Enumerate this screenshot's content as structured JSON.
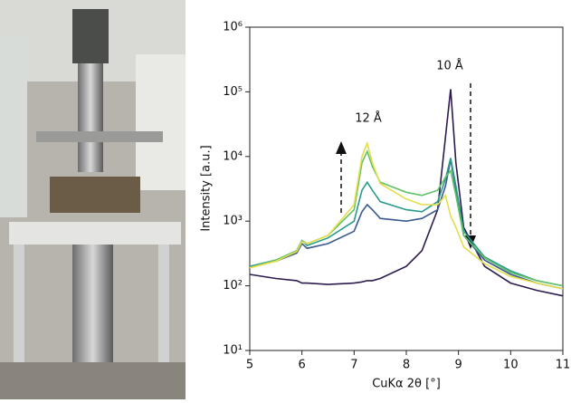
{
  "chart_data": {
    "type": "line",
    "xlabel": "CuKα 2θ [°]",
    "ylabel": "Intensity [a.u.]",
    "annotations": [
      "12 Å",
      "10 Å"
    ],
    "x": [
      5,
      5.5,
      5.9,
      6.0,
      6.1,
      6.5,
      7.0,
      7.15,
      7.25,
      7.35,
      7.5,
      8.0,
      8.3,
      8.6,
      8.75,
      8.85,
      8.95,
      9.1,
      9.5,
      10,
      10.5,
      11
    ],
    "series": [
      {
        "color": "#2d1b4e",
        "values": [
          150,
          130,
          120,
          110,
          110,
          105,
          110,
          115,
          120,
          120,
          130,
          200,
          350,
          1500,
          20000,
          110000,
          8000,
          800,
          200,
          110,
          85,
          70
        ]
      },
      {
        "color": "#3b5a8f",
        "values": [
          200,
          240,
          320,
          450,
          380,
          450,
          700,
          1400,
          1800,
          1500,
          1100,
          1000,
          1100,
          1500,
          3500,
          9000,
          3000,
          600,
          250,
          150,
          110,
          90
        ]
      },
      {
        "color": "#2a9a8c",
        "values": [
          200,
          250,
          350,
          500,
          420,
          550,
          1000,
          3000,
          4000,
          3000,
          2000,
          1500,
          1400,
          2000,
          4500,
          9500,
          3500,
          700,
          280,
          170,
          120,
          100
        ]
      },
      {
        "color": "#62c266",
        "values": [
          190,
          250,
          350,
          500,
          450,
          600,
          1500,
          8000,
          12000,
          7000,
          4000,
          2800,
          2500,
          3000,
          4800,
          6000,
          2500,
          600,
          270,
          160,
          120,
          100
        ]
      },
      {
        "color": "#e3de4a",
        "values": [
          190,
          240,
          340,
          480,
          450,
          600,
          1800,
          10000,
          16000,
          8000,
          3800,
          2200,
          1800,
          1800,
          2500,
          1200,
          800,
          400,
          220,
          140,
          110,
          90
        ]
      }
    ],
    "xlim": [
      5,
      11
    ],
    "xticks": [
      5,
      6,
      7,
      8,
      9,
      10,
      11
    ],
    "ylim": [
      10,
      1000000
    ],
    "ylog": true,
    "yticks": [
      {
        "value": 10,
        "label": "10¹"
      },
      {
        "value": 100,
        "label": "10²"
      },
      {
        "value": 1000,
        "label": "10³"
      },
      {
        "value": 10000,
        "label": "10⁴"
      },
      {
        "value": 100000,
        "label": "10⁵"
      },
      {
        "value": 1000000,
        "label": "10⁶"
      }
    ]
  }
}
